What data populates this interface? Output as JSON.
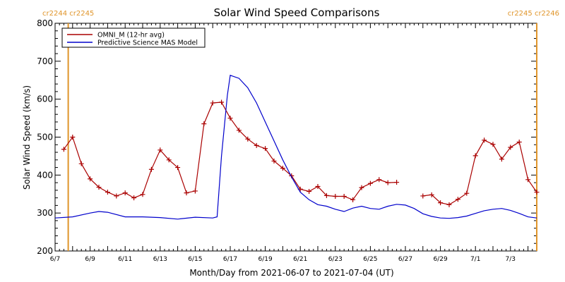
{
  "chart_data": {
    "type": "line",
    "title": "Solar Wind Speed Comparisons",
    "xlabel": "Month/Day from 2021-06-07 to 2021-07-04 (UT)",
    "ylabel": "Solar Wind Speed (km/s)",
    "xlim": [
      "2021-06-07T00:00",
      "2021-07-04T12:00"
    ],
    "ylim": [
      200,
      800
    ],
    "yticks": [
      200,
      300,
      400,
      500,
      600,
      700,
      800
    ],
    "xticks": [
      {
        "date": "2021-06-07",
        "label": "6/7"
      },
      {
        "date": "2021-06-09",
        "label": "6/9"
      },
      {
        "date": "2021-06-11",
        "label": "6/11"
      },
      {
        "date": "2021-06-13",
        "label": "6/13"
      },
      {
        "date": "2021-06-15",
        "label": "6/15"
      },
      {
        "date": "2021-06-17",
        "label": "6/17"
      },
      {
        "date": "2021-06-19",
        "label": "6/19"
      },
      {
        "date": "2021-06-21",
        "label": "6/21"
      },
      {
        "date": "2021-06-23",
        "label": "6/23"
      },
      {
        "date": "2021-06-25",
        "label": "6/25"
      },
      {
        "date": "2021-06-27",
        "label": "6/27"
      },
      {
        "date": "2021-06-29",
        "label": "6/29"
      },
      {
        "date": "2021-07-01",
        "label": "7/1"
      },
      {
        "date": "2021-07-03",
        "label": "7/3"
      }
    ],
    "carrington_markers": [
      {
        "date": "2021-06-07T18:00",
        "label": "cr2244 cr2245",
        "side": "left",
        "color": "#e0952a"
      },
      {
        "date": "2021-07-04T12:00",
        "label": "cr2245 cr2246",
        "side": "right",
        "color": "#e0952a"
      }
    ],
    "legend": {
      "placement": "top-left"
    },
    "series": [
      {
        "name": "OMNI_M (12-hr avg)",
        "color": "#aa0000",
        "marker": "plus",
        "x": [
          "2021-06-07T12:00",
          "2021-06-08T00:00",
          "2021-06-08T12:00",
          "2021-06-09T00:00",
          "2021-06-09T12:00",
          "2021-06-10T00:00",
          "2021-06-10T12:00",
          "2021-06-11T00:00",
          "2021-06-11T12:00",
          "2021-06-12T00:00",
          "2021-06-12T12:00",
          "2021-06-13T00:00",
          "2021-06-13T12:00",
          "2021-06-14T00:00",
          "2021-06-14T12:00",
          "2021-06-15T00:00",
          "2021-06-15T12:00",
          "2021-06-16T00:00",
          "2021-06-16T12:00",
          "2021-06-17T00:00",
          "2021-06-17T12:00",
          "2021-06-18T00:00",
          "2021-06-18T12:00",
          "2021-06-19T00:00",
          "2021-06-19T12:00",
          "2021-06-20T00:00",
          "2021-06-20T12:00",
          "2021-06-21T00:00",
          "2021-06-21T12:00",
          "2021-06-22T00:00",
          "2021-06-22T12:00",
          "2021-06-23T00:00",
          "2021-06-23T12:00",
          "2021-06-24T00:00",
          "2021-06-24T12:00",
          "2021-06-25T00:00",
          "2021-06-25T12:00",
          "2021-06-26T00:00",
          "2021-06-26T12:00",
          "2021-06-27T00:00",
          "2021-06-27T12:00",
          "2021-06-28T00:00",
          "2021-06-28T12:00",
          "2021-06-29T00:00",
          "2021-06-29T12:00",
          "2021-06-30T00:00",
          "2021-06-30T12:00",
          "2021-07-01T00:00",
          "2021-07-01T12:00",
          "2021-07-02T00:00",
          "2021-07-02T12:00",
          "2021-07-03T00:00",
          "2021-07-03T12:00",
          "2021-07-04T00:00",
          "2021-07-04T12:00"
        ],
        "values": [
          468,
          500,
          430,
          390,
          368,
          355,
          345,
          353,
          340,
          349,
          415,
          466,
          440,
          420,
          353,
          358,
          535,
          590,
          592,
          550,
          518,
          495,
          478,
          470,
          437,
          418,
          398,
          363,
          357,
          370,
          346,
          344,
          344,
          335,
          367,
          378,
          388,
          380,
          381,
          null,
          null,
          345,
          348,
          327,
          322,
          336,
          352,
          451,
          492,
          481,
          442,
          473,
          487,
          388,
          355
        ]
      },
      {
        "name": "Predictive Science MAS Model",
        "color": "#0000cc",
        "marker": "none",
        "x": [
          "2021-06-07T00:00",
          "2021-06-08T00:00",
          "2021-06-09T00:00",
          "2021-06-09T12:00",
          "2021-06-10T00:00",
          "2021-06-11T00:00",
          "2021-06-12T00:00",
          "2021-06-13T00:00",
          "2021-06-14T00:00",
          "2021-06-15T00:00",
          "2021-06-16T00:00",
          "2021-06-16T06:00",
          "2021-06-16T12:00",
          "2021-06-16T20:00",
          "2021-06-17T00:00",
          "2021-06-17T12:00",
          "2021-06-18T00:00",
          "2021-06-18T12:00",
          "2021-06-19T00:00",
          "2021-06-19T12:00",
          "2021-06-20T00:00",
          "2021-06-20T12:00",
          "2021-06-21T00:00",
          "2021-06-21T12:00",
          "2021-06-22T00:00",
          "2021-06-22T12:00",
          "2021-06-23T00:00",
          "2021-06-23T12:00",
          "2021-06-24T00:00",
          "2021-06-24T12:00",
          "2021-06-25T00:00",
          "2021-06-25T12:00",
          "2021-06-26T00:00",
          "2021-06-26T12:00",
          "2021-06-27T00:00",
          "2021-06-27T12:00",
          "2021-06-28T00:00",
          "2021-06-28T12:00",
          "2021-06-29T00:00",
          "2021-06-29T12:00",
          "2021-06-30T00:00",
          "2021-06-30T12:00",
          "2021-07-01T00:00",
          "2021-07-01T12:00",
          "2021-07-02T00:00",
          "2021-07-02T12:00",
          "2021-07-03T00:00",
          "2021-07-03T12:00",
          "2021-07-04T00:00",
          "2021-07-04T12:00"
        ],
        "values": [
          287,
          290,
          300,
          304,
          302,
          290,
          290,
          288,
          284,
          289,
          287,
          290,
          450,
          610,
          663,
          655,
          630,
          590,
          540,
          490,
          440,
          395,
          355,
          335,
          322,
          318,
          310,
          304,
          313,
          318,
          312,
          310,
          318,
          323,
          321,
          312,
          298,
          291,
          287,
          286,
          288,
          292,
          299,
          306,
          310,
          312,
          307,
          299,
          290,
          287
        ]
      }
    ]
  }
}
